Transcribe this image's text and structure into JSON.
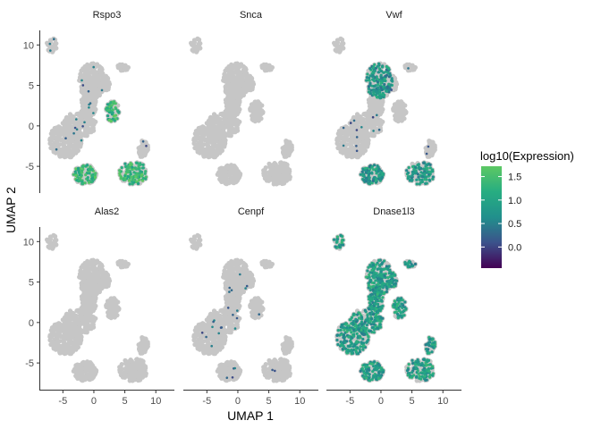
{
  "chart_data": {
    "type": "scatter",
    "xlabel": "UMAP 1",
    "ylabel": "UMAP 2",
    "xlim": [
      -8.8,
      13.0
    ],
    "ylim": [
      -8.3,
      11.8
    ],
    "x_ticks": [
      -5,
      0,
      5,
      10
    ],
    "y_ticks": [
      -5,
      0,
      5,
      10
    ],
    "x_tick_labels": [
      "-5",
      "0",
      "5",
      "10"
    ],
    "y_tick_labels": [
      "-5",
      "0",
      "5",
      "10"
    ],
    "grid": false,
    "background_point_color": "#c6c6c6",
    "legend": {
      "title": "log10(Expression)",
      "placement": "right",
      "ticks": [
        1.5,
        1.0,
        0.5,
        0.0
      ],
      "tick_labels": [
        "1.5",
        "1.0",
        "0.5",
        "0.0"
      ],
      "range": [
        -0.45,
        1.72
      ],
      "colors": [
        "#440154",
        "#3b528b",
        "#21908c",
        "#27ad81",
        "#5dc863"
      ]
    },
    "panels": [
      {
        "gene": "Rspo3",
        "expressed_clusters": [
          "right-middle",
          "lower-left",
          "right-lower"
        ],
        "expressed_level": 1.35
      },
      {
        "gene": "Snca",
        "expressed_clusters": [],
        "expressed_level": 0.0
      },
      {
        "gene": "Vwf",
        "expressed_clusters": [
          "lower-left",
          "right-lower",
          "top"
        ],
        "expressed_level": 0.8
      },
      {
        "gene": "Alas2",
        "expressed_clusters": [],
        "expressed_level": 0.0
      },
      {
        "gene": "Cenpf",
        "expressed_clusters": [],
        "expressed_level": 0.2
      },
      {
        "gene": "Dnase1l3",
        "expressed_clusters": [
          "all"
        ],
        "expressed_level": 0.9
      }
    ]
  }
}
